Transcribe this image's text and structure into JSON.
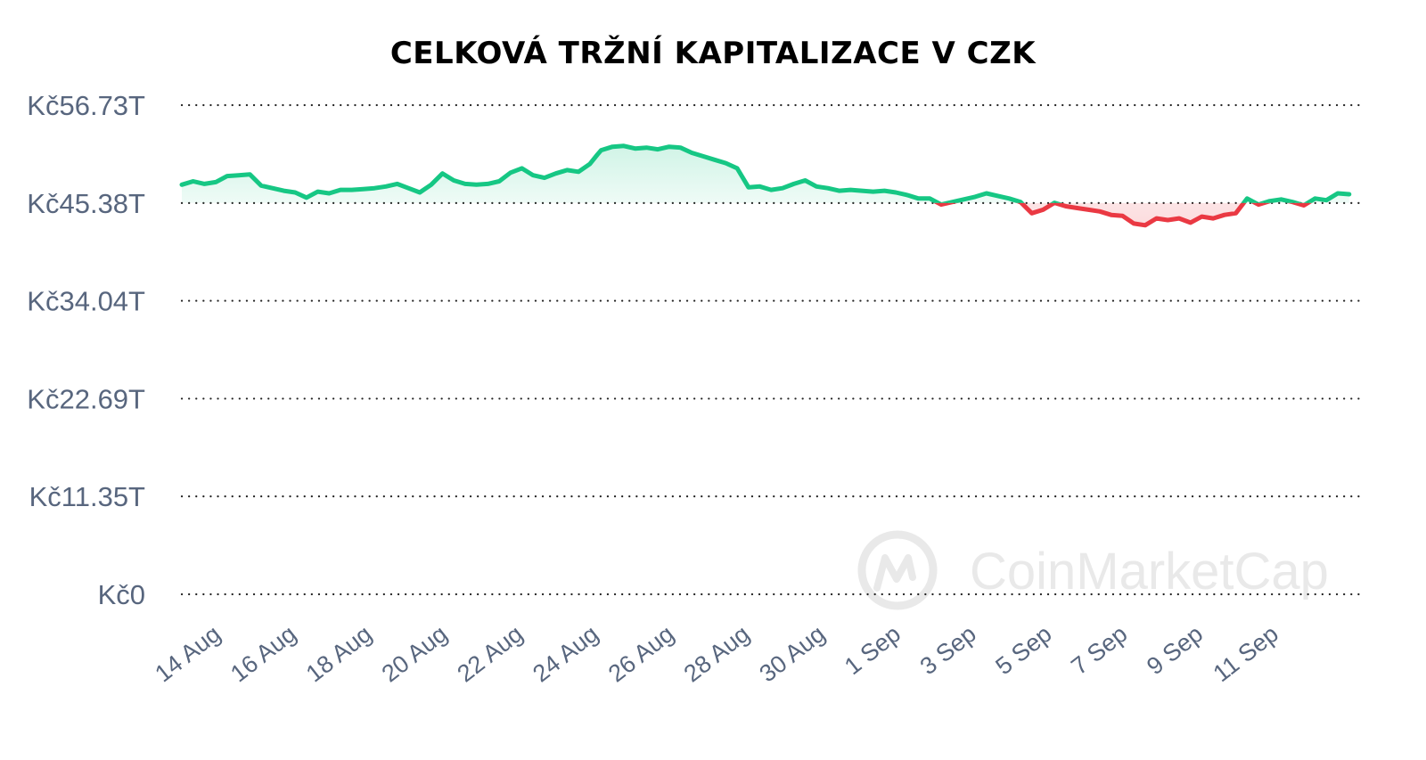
{
  "chart_data": {
    "type": "line",
    "title": "CELKOVÁ TRŽNÍ KAPITALIZACE V CZK",
    "xlabel": "",
    "ylabel": "",
    "ylim": [
      0,
      56.73
    ],
    "y_ticks": [
      "Kč56.73T",
      "Kč45.38T",
      "Kč34.04T",
      "Kč22.69T",
      "Kč11.35T",
      "Kč0"
    ],
    "y_tick_values": [
      56.73,
      45.38,
      34.04,
      22.69,
      11.35,
      0
    ],
    "x_ticks": [
      "14 Aug",
      "16 Aug",
      "18 Aug",
      "20 Aug",
      "22 Aug",
      "24 Aug",
      "26 Aug",
      "28 Aug",
      "30 Aug",
      "1 Sep",
      "3 Sep",
      "5 Sep",
      "7 Sep",
      "9 Sep",
      "11 Sep"
    ],
    "x_tick_values": [
      1,
      3,
      5,
      7,
      9,
      11,
      13,
      15,
      17,
      19,
      21,
      23,
      25,
      27,
      29
    ],
    "x_unit": "days from 13 Aug",
    "xlim": [
      0,
      31
    ],
    "baseline": 45.38,
    "grid": true,
    "colors": {
      "above": "#16c784",
      "below": "#ea3943",
      "grid": "#222222",
      "tick_text": "#58667e",
      "title": "#000000"
    },
    "series": [
      {
        "name": "",
        "x": [
          0,
          0.3,
          0.6,
          0.9,
          1.2,
          1.5,
          1.8,
          2.1,
          2.4,
          2.7,
          3.0,
          3.3,
          3.6,
          3.9,
          4.2,
          4.5,
          4.8,
          5.1,
          5.4,
          5.7,
          6.0,
          6.3,
          6.6,
          6.9,
          7.2,
          7.5,
          7.8,
          8.1,
          8.4,
          8.7,
          9.0,
          9.3,
          9.6,
          9.9,
          10.2,
          10.5,
          10.8,
          11.0,
          11.1,
          11.4,
          11.7,
          12.0,
          12.3,
          12.6,
          12.9,
          13.2,
          13.5,
          13.8,
          14.1,
          14.4,
          14.7,
          15.0,
          15.3,
          15.6,
          15.9,
          16.2,
          16.5,
          16.8,
          17.1,
          17.4,
          17.7,
          18.0,
          18.3,
          18.6,
          18.9,
          19.2,
          19.5,
          19.8,
          20.1,
          20.4,
          20.7,
          21.0,
          21.3,
          21.6,
          21.9,
          22.2,
          22.5,
          22.8,
          23.1,
          23.4,
          23.7,
          24.0,
          24.3,
          24.6,
          24.9,
          25.2,
          25.5,
          25.8,
          26.1,
          26.4,
          26.7,
          27.0,
          27.3,
          27.6,
          27.9,
          28.2,
          28.5,
          28.8,
          29.1,
          29.4,
          29.7,
          30.0,
          30.3,
          30.6,
          30.9
        ],
        "y": [
          47.5,
          47.9,
          47.6,
          47.8,
          48.5,
          48.6,
          48.7,
          47.4,
          47.1,
          46.8,
          46.6,
          46.0,
          46.7,
          46.5,
          46.9,
          46.9,
          47.0,
          47.1,
          47.3,
          47.6,
          47.1,
          46.6,
          47.5,
          48.8,
          48.0,
          47.6,
          47.5,
          47.6,
          47.9,
          48.9,
          49.4,
          48.6,
          48.3,
          48.8,
          49.2,
          49.0,
          49.9,
          51.0,
          51.5,
          51.9,
          52.0,
          51.7,
          51.8,
          51.6,
          51.9,
          51.8,
          51.2,
          50.8,
          50.4,
          50.0,
          49.4,
          47.2,
          47.3,
          46.9,
          47.1,
          47.6,
          48.0,
          47.3,
          47.1,
          46.8,
          46.9,
          46.8,
          46.7,
          46.8,
          46.6,
          46.3,
          45.9,
          45.9,
          45.2,
          45.5,
          45.8,
          46.1,
          46.5,
          46.2,
          45.9,
          45.5,
          44.2,
          44.6,
          45.4,
          45.0,
          44.8,
          44.6,
          44.4,
          44.0,
          43.9,
          43.0,
          42.8,
          43.6,
          43.4,
          43.6,
          43.1,
          43.8,
          43.6,
          44.0,
          44.2,
          45.9,
          45.2,
          45.6,
          45.8,
          45.5,
          45.1,
          45.9,
          45.7,
          46.5,
          46.4
        ]
      }
    ],
    "watermark": "CoinMarketCap"
  }
}
